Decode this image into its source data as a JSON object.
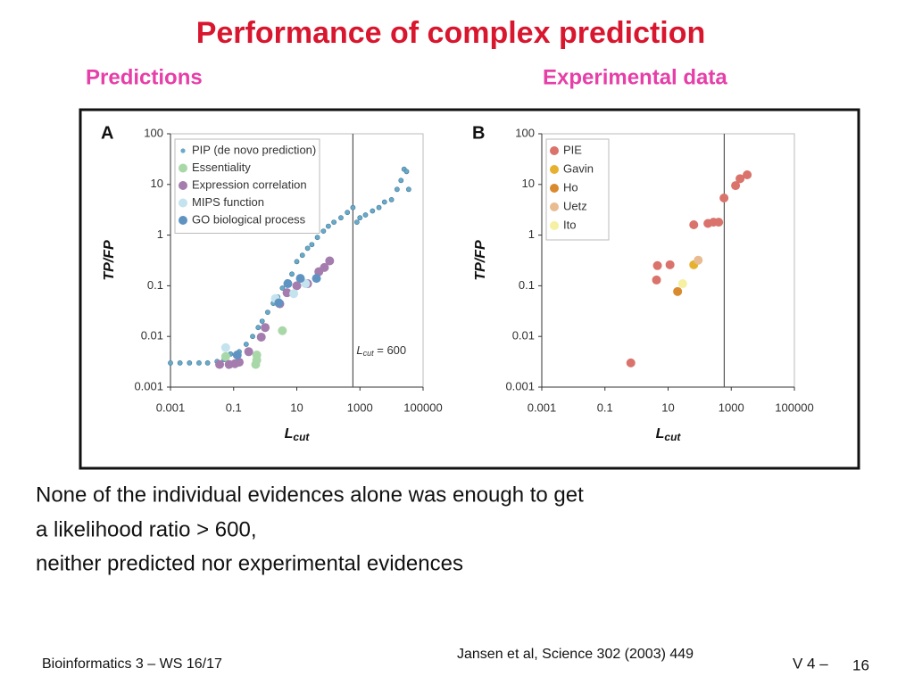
{
  "slide_title": "Performance of complex prediction",
  "left_heading": "Predictions",
  "right_heading": "Experimental data",
  "body": [
    "None of the individual evidences alone was enough to get",
    "a likelihood ratio > 600,",
    "neither predicted nor experimental evidences"
  ],
  "footer": {
    "course": "Bioinformatics 3 – WS 16/17",
    "reference": "Jansen et al, Science 302 (2003) 449",
    "lecture": "V 4 –",
    "page": "16"
  },
  "chart_data": [
    {
      "type": "scatter",
      "panel": "A",
      "xlabel": {
        "main": "L",
        "sub": "cut"
      },
      "ylabel": "TP/FP",
      "log_x": true,
      "log_y": true,
      "grid": false,
      "legend": "upper left",
      "xlim": [
        0.001,
        100000
      ],
      "ylim": [
        0.001,
        100
      ],
      "xticks": [
        0.001,
        0.1,
        10,
        1000,
        100000
      ],
      "yticks": [
        0.001,
        0.01,
        0.1,
        1,
        10,
        100
      ],
      "vline": 600,
      "annotation": {
        "main": "L",
        "sub": "cut",
        "rest": " = 600"
      },
      "series": [
        {
          "name": "PIP (de novo prediction)",
          "color": "#6aaac8",
          "x": [
            0.001,
            0.002,
            0.004,
            0.008,
            0.015,
            0.03,
            0.05,
            0.08,
            0.15,
            0.25,
            0.4,
            0.6,
            0.8,
            1.2,
            1.8,
            2.5,
            3.5,
            5,
            7,
            10,
            15,
            22,
            30,
            45,
            70,
            100,
            150,
            250,
            400,
            600,
            800,
            1000,
            1500,
            2500,
            4000,
            6000,
            10000,
            15000,
            20000,
            25000,
            30000,
            35000
          ],
          "values": [
            0.003,
            0.003,
            0.003,
            0.003,
            0.003,
            0.0032,
            0.0035,
            0.0045,
            0.005,
            0.007,
            0.01,
            0.015,
            0.02,
            0.03,
            0.045,
            0.06,
            0.09,
            0.12,
            0.17,
            0.3,
            0.4,
            0.55,
            0.65,
            0.9,
            1.2,
            1.5,
            1.8,
            2.2,
            2.8,
            3.5,
            1.8,
            2.2,
            2.5,
            3,
            3.5,
            4.5,
            5,
            8,
            12,
            20,
            18,
            8
          ]
        },
        {
          "name": "Essentiality",
          "color": "#a9d8a8",
          "x": [
            0.056,
            0.54,
            0.54,
            0.5,
            3.5
          ],
          "values": [
            0.004,
            0.0043,
            0.0034,
            0.0028,
            0.013
          ]
        },
        {
          "name": "Expression correlation",
          "color": "#a47cad",
          "x": [
            0.036,
            0.072,
            0.11,
            0.15,
            0.3,
            0.75,
            1.0,
            2.9,
            4.9,
            10,
            22,
            50,
            75,
            110
          ],
          "values": [
            0.0028,
            0.0028,
            0.0029,
            0.0031,
            0.005,
            0.0097,
            0.015,
            0.044,
            0.073,
            0.1,
            0.11,
            0.19,
            0.23,
            0.31
          ]
        },
        {
          "name": "MIPS function",
          "color": "#c4e3ee",
          "x": [
            0.056,
            2.1,
            8,
            19
          ],
          "values": [
            0.006,
            0.056,
            0.07,
            0.11
          ]
        },
        {
          "name": "GO biological process",
          "color": "#5f93c1",
          "x": [
            0.13,
            2.7,
            5.2,
            13,
            42
          ],
          "values": [
            0.0043,
            0.046,
            0.11,
            0.14,
            0.14
          ]
        }
      ]
    },
    {
      "type": "scatter",
      "panel": "B",
      "xlabel": {
        "main": "L",
        "sub": "cut"
      },
      "ylabel": "TP/FP",
      "log_x": true,
      "log_y": true,
      "grid": false,
      "legend": "upper left",
      "xlim": [
        0.001,
        100000
      ],
      "ylim": [
        0.001,
        100
      ],
      "xticks": [
        0.001,
        0.1,
        10,
        1000,
        100000
      ],
      "yticks": [
        0.001,
        0.01,
        0.1,
        1,
        10,
        100
      ],
      "vline": 600,
      "series": [
        {
          "name": "PIE",
          "color": "#d9736b",
          "x": [
            0.66,
            4.3,
            4.6,
            11.5,
            65,
            183,
            274,
            400,
            590,
            1370,
            1900,
            3200
          ],
          "values": [
            0.003,
            0.13,
            0.25,
            0.26,
            1.6,
            1.7,
            1.8,
            1.8,
            5.4,
            9.5,
            13,
            15.5
          ]
        },
        {
          "name": "Gavin",
          "color": "#e6b12f",
          "x": [
            65
          ],
          "values": [
            0.26
          ]
        },
        {
          "name": "Ho",
          "color": "#d98a2f",
          "x": [
            20
          ],
          "values": [
            0.077
          ]
        },
        {
          "name": "Uetz",
          "color": "#e9bb90",
          "x": [
            90
          ],
          "values": [
            0.32
          ]
        },
        {
          "name": "Ito",
          "color": "#f6f0a2",
          "x": [
            29
          ],
          "values": [
            0.11
          ]
        }
      ]
    }
  ]
}
